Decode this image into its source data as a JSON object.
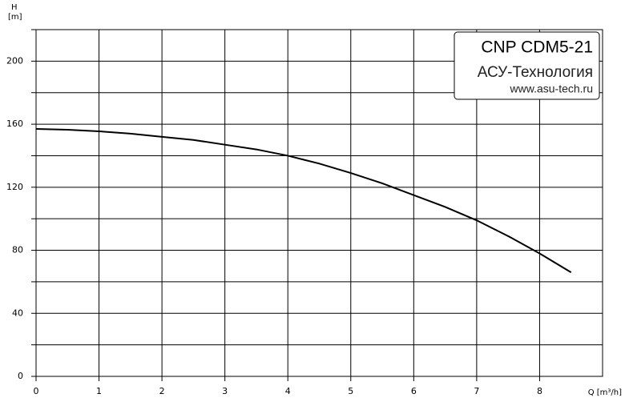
{
  "chart_data": {
    "type": "line",
    "title": "CNP CDM5-21",
    "subtitle": "АСУ-Технология",
    "annotation": "www.asu-tech.ru",
    "y_label_name": "H",
    "y_label_unit": "[m]",
    "x_label": "Q [m³/h]",
    "x": [
      0,
      0.5,
      1,
      1.5,
      2,
      2.5,
      3,
      3.5,
      4,
      4.5,
      5,
      5.5,
      6,
      6.5,
      7,
      7.5,
      8,
      8.5
    ],
    "series": [
      {
        "color": "#000000",
        "values": [
          157,
          156.5,
          155.5,
          154,
          152,
          150,
          147,
          144,
          140,
          135,
          129,
          122.5,
          115,
          107.5,
          99,
          89,
          78,
          66
        ]
      }
    ],
    "xlim": [
      0,
      9
    ],
    "xticks": [
      0,
      1,
      2,
      3,
      4,
      5,
      6,
      7,
      8
    ],
    "ylim": [
      0,
      220
    ],
    "yticks": [
      0,
      40,
      80,
      120,
      160,
      200
    ],
    "yminor": [
      20,
      60,
      100,
      140,
      180,
      220
    ],
    "grid": true
  }
}
